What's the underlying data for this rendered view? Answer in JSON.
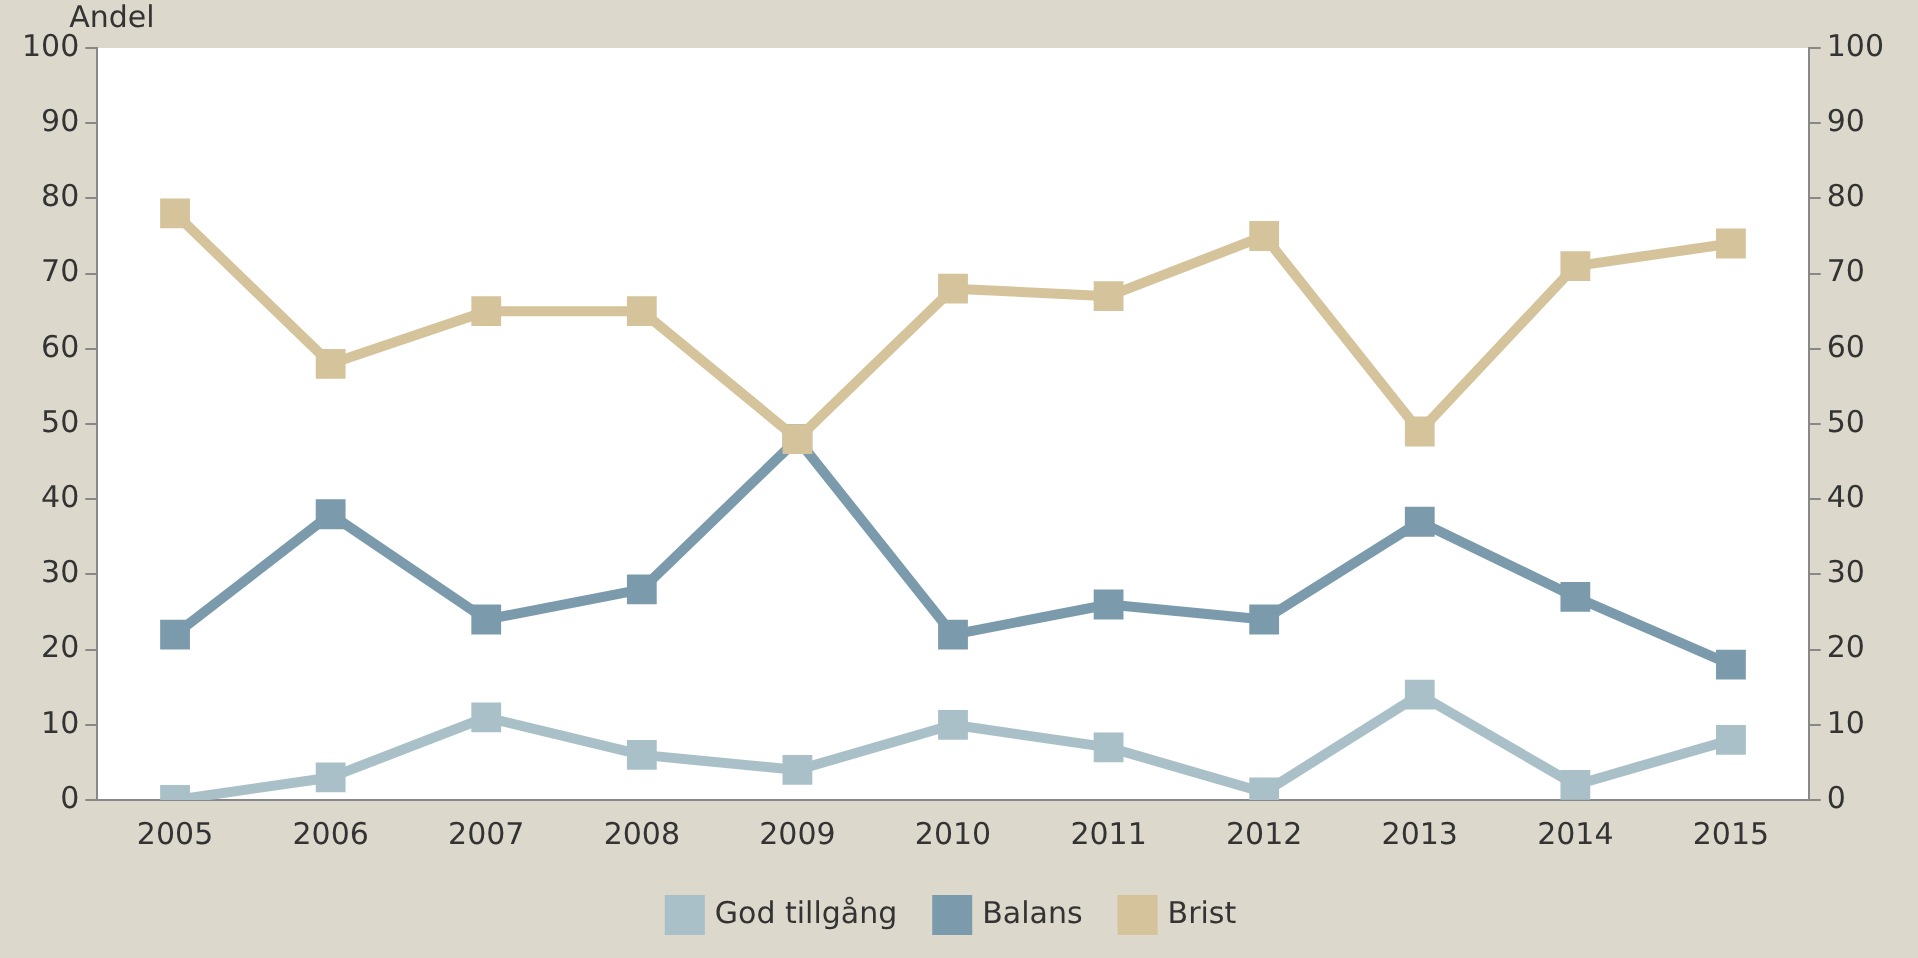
{
  "chart_data": {
    "type": "line",
    "ylabel": "Andel",
    "categories": [
      "2005",
      "2006",
      "2007",
      "2008",
      "2009",
      "2010",
      "2011",
      "2012",
      "2013",
      "2014",
      "2015"
    ],
    "series": [
      {
        "name": "God tillgång",
        "color": "#a9c0c9",
        "values": [
          0,
          3,
          11,
          6,
          4,
          10,
          7,
          1,
          14,
          2,
          8
        ]
      },
      {
        "name": "Balans",
        "color": "#7b9bac",
        "values": [
          22,
          38,
          24,
          28,
          48,
          22,
          26,
          24,
          37,
          27,
          18
        ]
      },
      {
        "name": "Brist",
        "color": "#d5c39b",
        "values": [
          78,
          58,
          65,
          65,
          48,
          68,
          67,
          75,
          49,
          71,
          74
        ]
      }
    ],
    "ylim": [
      0,
      100
    ],
    "yticks": [
      0,
      10,
      20,
      30,
      40,
      50,
      60,
      70,
      80,
      90,
      100
    ],
    "y2lim": [
      0,
      100
    ],
    "y2ticks": [
      0,
      10,
      20,
      30,
      40,
      50,
      60,
      70,
      80,
      90,
      100
    ],
    "grid": false,
    "legend": "bottom",
    "marker": "square",
    "line_style": "solid"
  }
}
